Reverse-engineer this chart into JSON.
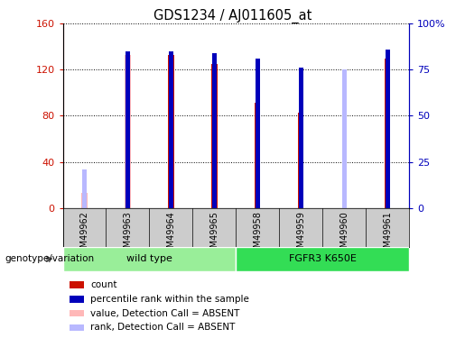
{
  "title": "GDS1234 / AJ011605_at",
  "samples": [
    "GSM49962",
    "GSM49963",
    "GSM49964",
    "GSM49965",
    "GSM49958",
    "GSM49959",
    "GSM49960",
    "GSM49961"
  ],
  "groups": [
    {
      "name": "wild type",
      "indices": [
        0,
        1,
        2,
        3
      ],
      "color": "#99EE99"
    },
    {
      "name": "FGFR3 K650E",
      "indices": [
        4,
        5,
        6,
        7
      ],
      "color": "#33DD55"
    }
  ],
  "count_values": [
    null,
    null,
    133,
    125,
    91,
    83,
    null,
    130
  ],
  "count_absent": [
    13,
    133,
    null,
    null,
    null,
    null,
    null,
    null
  ],
  "rank_values": [
    null,
    85,
    85,
    84,
    81,
    76,
    null,
    86
  ],
  "rank_absent": [
    21,
    null,
    null,
    null,
    null,
    null,
    75,
    null
  ],
  "ylim_left": [
    0,
    160
  ],
  "ylim_right": [
    0,
    100
  ],
  "yticks_left": [
    0,
    40,
    80,
    120,
    160
  ],
  "yticks_right": [
    0,
    25,
    50,
    75,
    100
  ],
  "ytick_labels_left": [
    "0",
    "40",
    "80",
    "120",
    "160"
  ],
  "ytick_labels_right": [
    "0",
    "25",
    "50",
    "75",
    "100%"
  ],
  "color_count": "#CC1100",
  "color_rank": "#0000BB",
  "color_absent_value": "#FFB8B8",
  "color_absent_rank": "#B8B8FF",
  "color_axis_left": "#CC1100",
  "color_axis_right": "#0000BB",
  "bg_xlabel": "#CCCCCC",
  "genotype_label": "genotype/variation",
  "legend_items": [
    {
      "label": "count",
      "color": "#CC1100"
    },
    {
      "label": "percentile rank within the sample",
      "color": "#0000BB"
    },
    {
      "label": "value, Detection Call = ABSENT",
      "color": "#FFB8B8"
    },
    {
      "label": "rank, Detection Call = ABSENT",
      "color": "#B8B8FF"
    }
  ]
}
